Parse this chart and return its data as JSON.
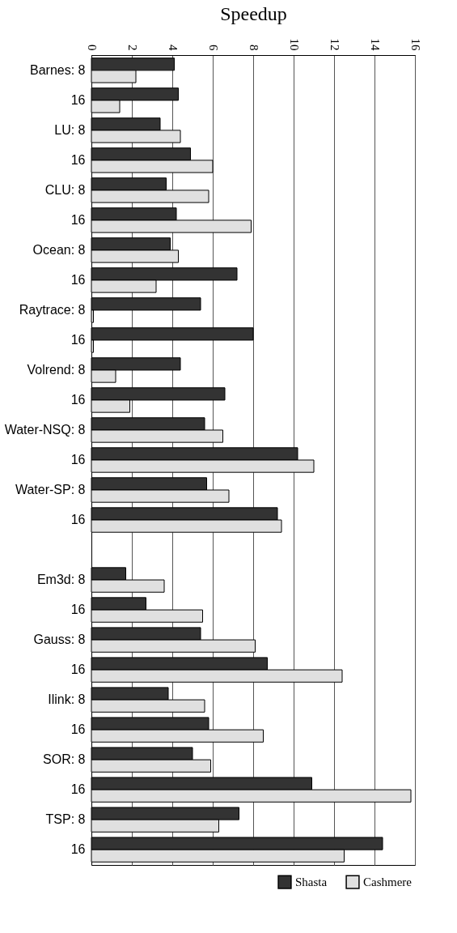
{
  "chart_data": {
    "type": "bar",
    "orientation": "horizontal",
    "xlabel": "Speedup",
    "categories": [
      "Barnes: 8",
      "16",
      "LU: 8",
      "16",
      "CLU: 8",
      "16",
      "Ocean: 8",
      "16",
      "Raytrace: 8",
      "16",
      "Volrend: 8",
      "16",
      "Water-NSQ: 8",
      "16",
      "Water-SP: 8",
      "16",
      null,
      "Em3d: 8",
      "16",
      "Gauss: 8",
      "16",
      "Ilink: 8",
      "16",
      "SOR: 8",
      "16",
      "TSP: 8",
      "16"
    ],
    "series": [
      {
        "name": "Shasta",
        "color": "#333333",
        "values": [
          4.1,
          4.3,
          3.4,
          4.9,
          3.7,
          4.2,
          3.9,
          7.2,
          5.4,
          8.0,
          4.4,
          6.6,
          5.6,
          10.2,
          5.7,
          9.2,
          null,
          1.7,
          2.7,
          5.4,
          8.7,
          3.8,
          5.8,
          5.0,
          10.9,
          7.3,
          14.4
        ]
      },
      {
        "name": "Cashmere",
        "color": "#e0e0e0",
        "values": [
          2.2,
          1.4,
          4.4,
          6.0,
          5.8,
          7.9,
          4.3,
          3.2,
          0.1,
          0.1,
          1.2,
          1.9,
          6.5,
          11.0,
          6.8,
          9.4,
          null,
          3.6,
          5.5,
          8.1,
          12.4,
          5.6,
          8.5,
          5.9,
          15.8,
          6.3,
          12.5
        ]
      }
    ],
    "xlim": [
      0,
      16
    ],
    "xticks": [
      0,
      2,
      4,
      6,
      8,
      10,
      12,
      14,
      16
    ],
    "grid": "x",
    "legend": "bottom right"
  }
}
